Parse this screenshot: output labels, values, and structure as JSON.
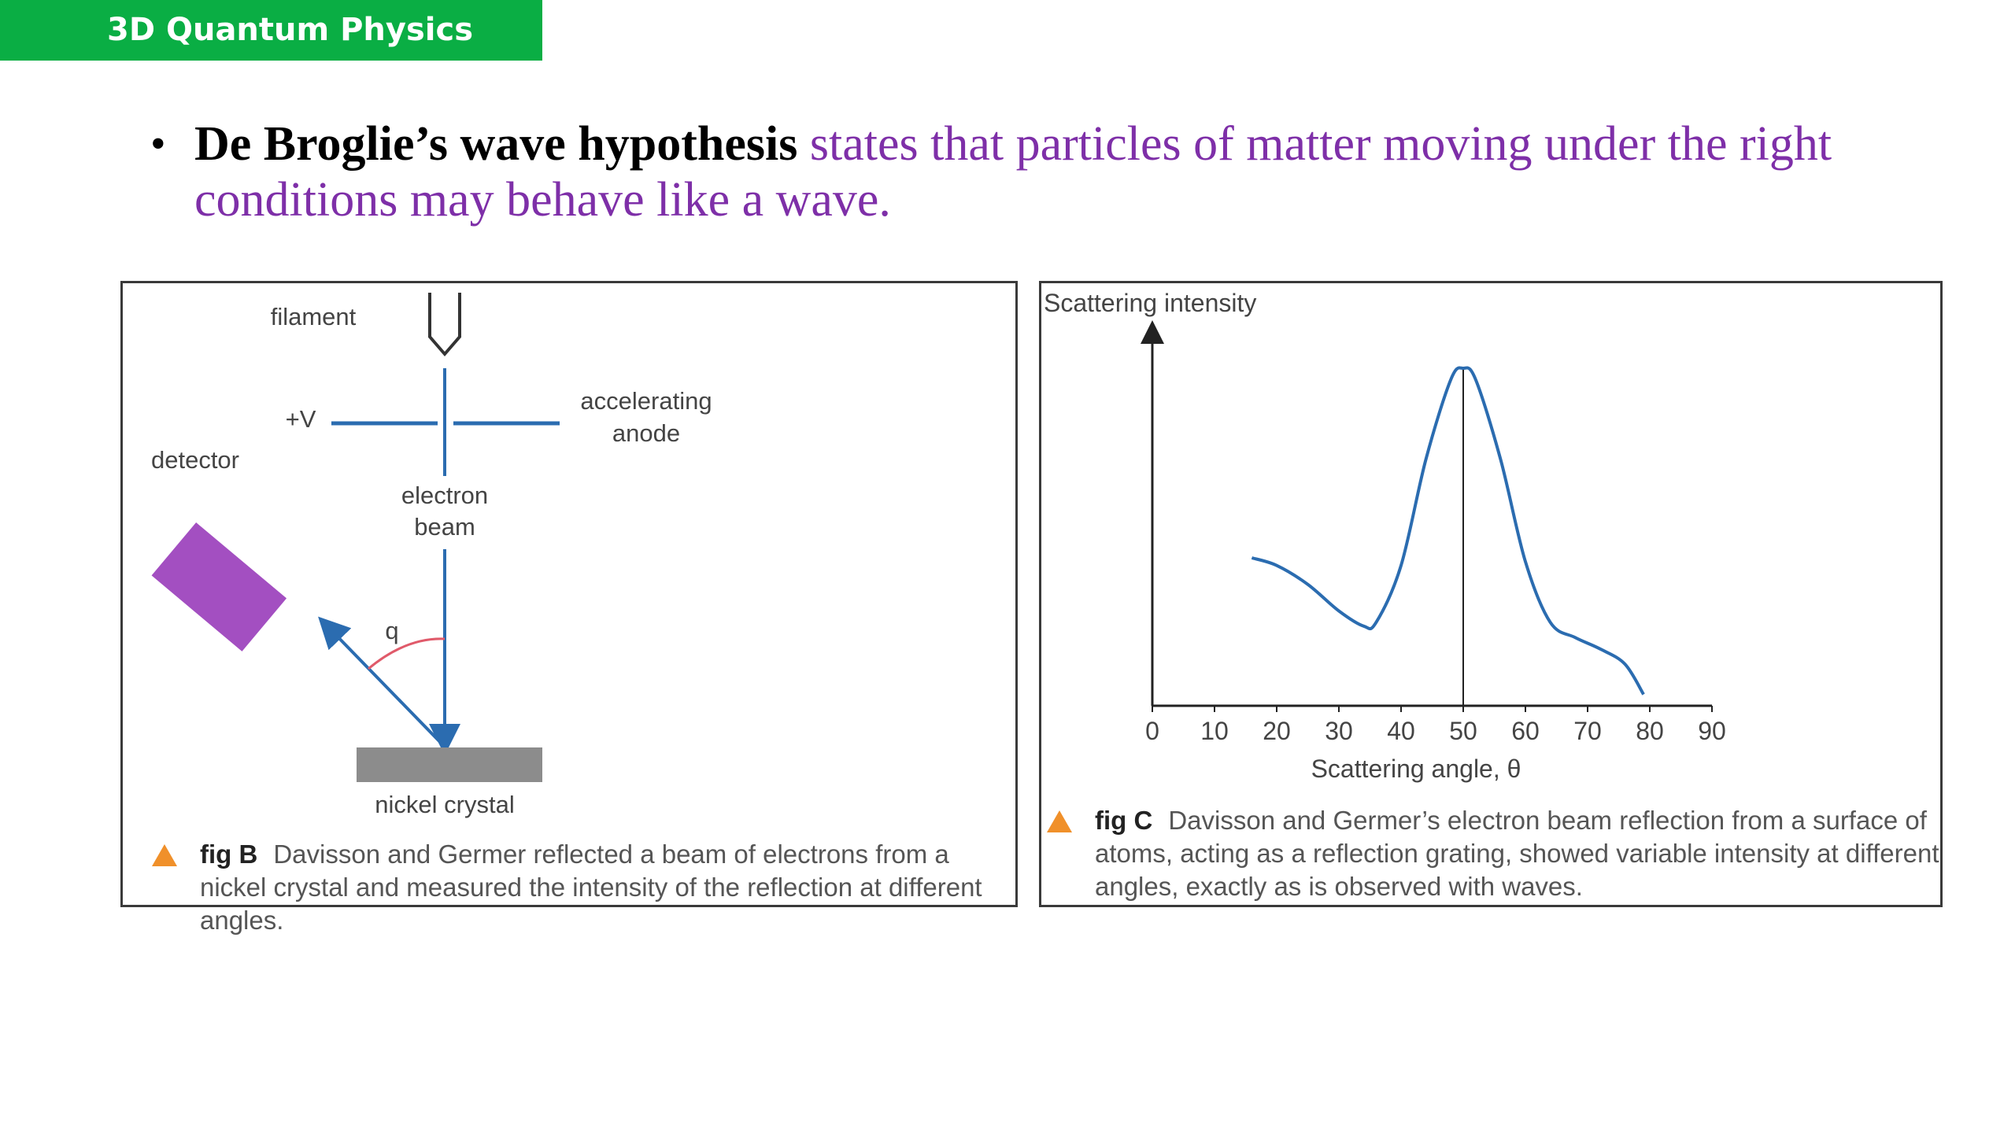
{
  "header": {
    "title": "3D Quantum Physics"
  },
  "bullet": {
    "term": "De Broglie’s wave hypothesis",
    "definition": "states that particles of matter moving under the right conditions may behave like a wave."
  },
  "fig_b": {
    "labels": {
      "filament": "filament",
      "voltage": "+V",
      "anode_line1": "accelerating",
      "anode_line2": "anode",
      "detector": "detector",
      "beam_line1": "electron",
      "beam_line2": "beam",
      "angle": "q",
      "crystal": "nickel crystal"
    },
    "colors": {
      "beam": "#2b6cb0",
      "detector": "#a34fc1",
      "crystal": "#8c8c8c",
      "angle_arc": "#e05a6a"
    },
    "caption": {
      "label": "fig B",
      "text": "Davisson and Germer reflected a beam of electrons from a nickel crystal and measured the intensity of the reflection at different angles."
    }
  },
  "fig_c": {
    "caption": {
      "label": "fig C",
      "text": "Davisson and Germer’s electron beam reflection from a surface of atoms, acting as a reflection grating, showed variable intensity at different angles, exactly as is observed with waves."
    }
  },
  "chart_data": {
    "type": "line",
    "ylabel": "Scattering intensity",
    "xlabel": "Scattering angle, θ",
    "xlim": [
      0,
      90
    ],
    "ylim": [
      0,
      100
    ],
    "xticks": [
      0,
      10,
      20,
      30,
      40,
      50,
      60,
      70,
      80,
      90
    ],
    "peak_marker_x": 50,
    "series": [
      {
        "color": "#2b6cb0",
        "x": [
          16,
          20,
          25,
          30,
          34,
          36,
          40,
          44,
          48,
          50,
          52,
          56,
          60,
          64,
          68,
          72,
          76,
          79
        ],
        "y": [
          39,
          37,
          32,
          25,
          21,
          22,
          37,
          65,
          86,
          89,
          86,
          65,
          38,
          22,
          18,
          15,
          11,
          3
        ]
      }
    ],
    "grid": false
  }
}
